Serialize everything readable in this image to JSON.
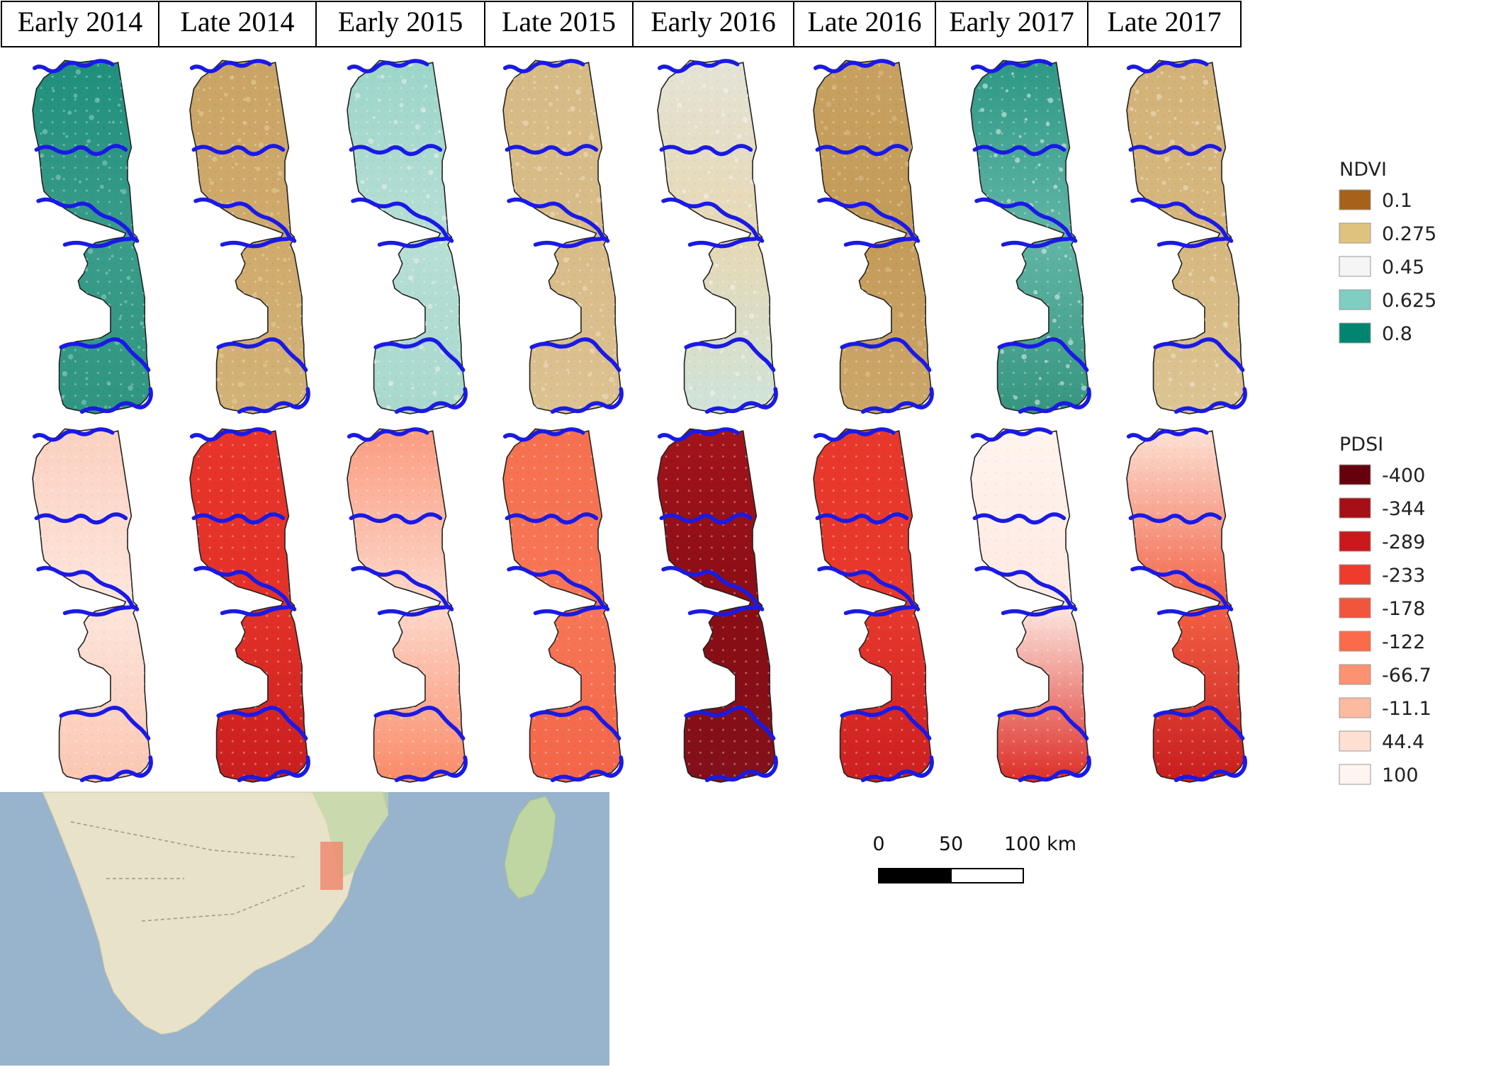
{
  "periods": [
    "Early 2014",
    "Late 2014",
    "Early 2015",
    "Late 2015",
    "Early 2016",
    "Late 2016",
    "Early 2017",
    "Late 2017"
  ],
  "ndvi": {
    "title": "NDVI",
    "classes": [
      {
        "label": "0.1",
        "color": "#a6611a"
      },
      {
        "label": "0.275",
        "color": "#dfc27d"
      },
      {
        "label": "0.45",
        "color": "#f5f5f5"
      },
      {
        "label": "0.625",
        "color": "#80cdc1"
      },
      {
        "label": "0.8",
        "color": "#018571"
      }
    ],
    "maps": [
      {
        "top": "#1f8f7c",
        "mid": "#3a9c8a",
        "bottom": "#2f9580",
        "speckle": "#8fd0c4"
      },
      {
        "top": "#c9a465",
        "mid": "#cfaa6c",
        "bottom": "#d3b278",
        "speckle": "#e6cf99"
      },
      {
        "top": "#9cd5c9",
        "mid": "#b7dfd6",
        "bottom": "#a8d8cd",
        "speckle": "#f0f0ea"
      },
      {
        "top": "#d7bb85",
        "mid": "#d8bc88",
        "bottom": "#dcc291",
        "speckle": "#ece0c2"
      },
      {
        "top": "#e4e3d6",
        "mid": "#e6d8b3",
        "bottom": "#cfe3da",
        "speckle": "#f4f4f0"
      },
      {
        "top": "#c7a160",
        "mid": "#c49b58",
        "bottom": "#cba76b",
        "speckle": "#dcc08a"
      },
      {
        "top": "#2d9885",
        "mid": "#62b6a6",
        "bottom": "#36957f",
        "speckle": "#e8f3ef"
      },
      {
        "top": "#d3b278",
        "mid": "#d6b77e",
        "bottom": "#dcc594",
        "speckle": "#eee3c8"
      }
    ]
  },
  "pdsi": {
    "title": "PDSI",
    "classes": [
      {
        "label": "-400",
        "color": "#67000d"
      },
      {
        "label": "-344",
        "color": "#a50f15"
      },
      {
        "label": "-289",
        "color": "#cb181d"
      },
      {
        "label": "-233",
        "color": "#ef3b2c"
      },
      {
        "label": "-178",
        "color": "#f1563d"
      },
      {
        "label": "-122",
        "color": "#fb6a4a"
      },
      {
        "label": "-66.7",
        "color": "#fc9272"
      },
      {
        "label": "-11.1",
        "color": "#fcbba1"
      },
      {
        "label": "44.4",
        "color": "#fee0d2"
      },
      {
        "label": "100",
        "color": "#fff5f0"
      }
    ],
    "maps": [
      {
        "top": "#fcd0c0",
        "mid": "#fde6dc",
        "bottom": "#fbc6b2"
      },
      {
        "top": "#e8342a",
        "mid": "#e33228",
        "bottom": "#c91e1f"
      },
      {
        "top": "#fb9c80",
        "mid": "#fdd9cb",
        "bottom": "#fa8a68"
      },
      {
        "top": "#f6704f",
        "mid": "#f77757",
        "bottom": "#f36548"
      },
      {
        "top": "#a3141b",
        "mid": "#8a0d15",
        "bottom": "#82101a"
      },
      {
        "top": "#e8372b",
        "mid": "#e8392d",
        "bottom": "#cc1f20"
      },
      {
        "top": "#fff4ee",
        "mid": "#fde9e1",
        "bottom": "#dd2c25"
      },
      {
        "top": "#fde3d6",
        "mid": "#f36044",
        "bottom": "#c71d1e"
      }
    ]
  },
  "scalebar": {
    "labels": [
      "0",
      "50",
      "100 km"
    ]
  },
  "locator": {
    "ocean": "#98b3cc",
    "land": "#e7e2c8",
    "veg": "#bfd6a3",
    "aoi": "#f0846c"
  }
}
